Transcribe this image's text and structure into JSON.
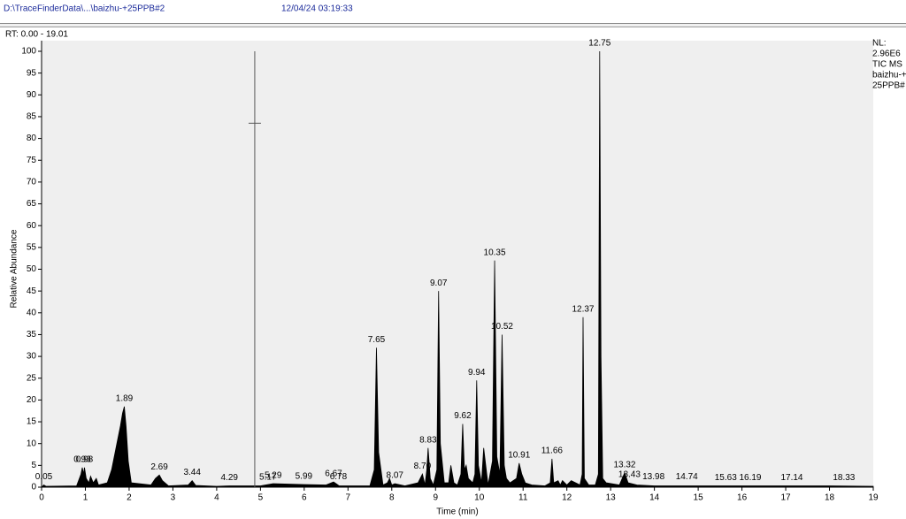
{
  "chart_data": {
    "type": "line",
    "file_path": "D:\\TraceFinderData\\...\\baizhu-+25PPB#2",
    "timestamp": "12/04/24 03:19:33",
    "range_label": "RT: 0.00 - 19.01",
    "info_lines": [
      "NL:",
      "2.96E6",
      "TIC  MS",
      "baizhu-+",
      "25PPB#"
    ],
    "xlabel": "Time (min)",
    "ylabel": "Relative Abundance",
    "xlim": [
      0,
      19
    ],
    "xticks": [
      0,
      1,
      2,
      3,
      4,
      5,
      6,
      7,
      8,
      9,
      10,
      11,
      12,
      13,
      14,
      15,
      16,
      17,
      18,
      19
    ],
    "ylim": [
      0,
      100
    ],
    "yticks": [
      0,
      5,
      10,
      15,
      20,
      25,
      30,
      35,
      40,
      45,
      50,
      55,
      60,
      65,
      70,
      75,
      80,
      85,
      90,
      95,
      100
    ],
    "color": "#000000",
    "x": [
      0,
      0.05,
      0.1,
      0.8,
      0.9,
      0.93,
      0.96,
      0.98,
      1.02,
      1.08,
      1.12,
      1.18,
      1.25,
      1.3,
      1.5,
      1.6,
      1.7,
      1.8,
      1.85,
      1.89,
      1.93,
      1.98,
      2.05,
      2.5,
      2.6,
      2.69,
      2.76,
      2.9,
      3.35,
      3.44,
      3.52,
      4.0,
      4.29,
      5.0,
      5.29,
      5.99,
      6.5,
      6.67,
      6.8,
      7.5,
      7.6,
      7.65,
      7.7,
      7.8,
      7.9,
      7.95,
      8.0,
      8.07,
      8.3,
      8.6,
      8.7,
      8.76,
      8.8,
      8.83,
      8.88,
      8.95,
      9.03,
      9.07,
      9.11,
      9.2,
      9.3,
      9.35,
      9.42,
      9.5,
      9.58,
      9.62,
      9.66,
      9.7,
      9.75,
      9.85,
      9.9,
      9.94,
      9.98,
      10.05,
      10.1,
      10.2,
      10.3,
      10.35,
      10.4,
      10.47,
      10.52,
      10.57,
      10.62,
      10.7,
      10.85,
      10.91,
      10.97,
      11.05,
      11.2,
      11.5,
      11.62,
      11.66,
      11.7,
      11.8,
      11.85,
      11.9,
      12.0,
      12.1,
      12.3,
      12.35,
      12.37,
      12.4,
      12.5,
      12.65,
      12.72,
      12.75,
      12.78,
      12.82,
      12.9,
      13.2,
      13.32,
      13.4,
      13.6,
      14.0,
      15,
      16,
      17,
      18,
      19
    ],
    "values": [
      0,
      0.5,
      0.2,
      0.3,
      3,
      4.5,
      3,
      4.5,
      2,
      1,
      2.5,
      1,
      2,
      0.5,
      1,
      4,
      9,
      14,
      17,
      18.5,
      14,
      6,
      1,
      0.5,
      2,
      2.8,
      1.5,
      0.3,
      0.5,
      1.5,
      0.4,
      0.2,
      0.3,
      0.3,
      0.8,
      0.6,
      0.5,
      1.2,
      0.3,
      0.3,
      4,
      32,
      8,
      0.5,
      1,
      2,
      0.5,
      0.8,
      0.3,
      1,
      3,
      0.5,
      4,
      9,
      2,
      0.5,
      4,
      45,
      10,
      1,
      1,
      5,
      1,
      0.5,
      3,
      14.5,
      4,
      5,
      2,
      1,
      3,
      24.5,
      5,
      1,
      9,
      0.5,
      6,
      52,
      7,
      3,
      35,
      5,
      2,
      1,
      2,
      5.5,
      3,
      1,
      0.5,
      0.3,
      1,
      6.5,
      1,
      1.5,
      0.5,
      1.5,
      0.5,
      1.5,
      0.5,
      3,
      39,
      2,
      0.5,
      0.5,
      3,
      100,
      30,
      2,
      1,
      0.5,
      3.3,
      1,
      0.5,
      0.3,
      0.3,
      0.3,
      0.3,
      0.3,
      0.2
    ],
    "peaks": {
      "rt": [
        0.05,
        0.93,
        0.98,
        1.89,
        2.69,
        3.44,
        4.29,
        5.17,
        5.29,
        5.99,
        6.67,
        6.78,
        7.65,
        8.07,
        {
          "value": 8.7,
          "label": "8.70"
        },
        8.83,
        9.07,
        9.62,
        9.94,
        10.35,
        10.52,
        10.91,
        11.66,
        12.37,
        12.75,
        13.32,
        13.43,
        13.98,
        14.74,
        15.63,
        16.19,
        17.14,
        18.33
      ],
      "height": [
        0.5,
        4.5,
        4.5,
        18.5,
        2.8,
        1.5,
        0.3,
        0.4,
        0.8,
        0.6,
        1.2,
        0.5,
        32,
        0.8,
        3,
        9,
        45,
        14.5,
        24.5,
        52,
        35,
        5.5,
        6.5,
        39,
        100,
        3.3,
        1,
        0.5,
        0.5,
        0.3,
        0.3,
        0.3,
        0.3
      ]
    },
    "cursor": {
      "x": 4.87,
      "ylim": [
        0,
        100
      ],
      "y": 83.5
    }
  }
}
